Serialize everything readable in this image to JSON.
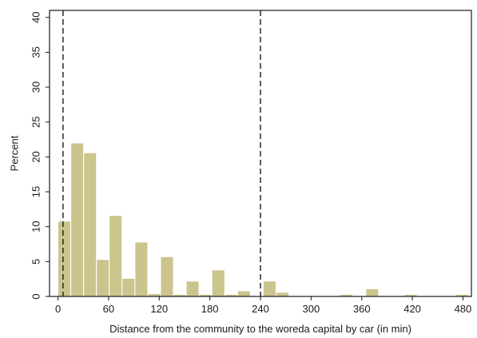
{
  "chart_data": {
    "type": "bar",
    "title": "",
    "xlabel": "Distance from the community to the woreda capital by car (in min)",
    "ylabel": "Percent",
    "xlim": [
      -10,
      490
    ],
    "ylim": [
      0,
      41
    ],
    "x_ticks": [
      0,
      60,
      120,
      180,
      240,
      300,
      360,
      420,
      480
    ],
    "x_tick_labels": [
      "0",
      "60",
      "120",
      "180",
      "240",
      "300",
      "360",
      "420",
      "480"
    ],
    "y_ticks": [
      0,
      5,
      10,
      15,
      20,
      25,
      30,
      35,
      40
    ],
    "y_tick_labels": [
      "0",
      "5",
      "10",
      "15",
      "20",
      "25",
      "30",
      "35",
      "40"
    ],
    "bin_width": 15.2,
    "bins": [
      {
        "x0": 0,
        "value": 10.8
      },
      {
        "x0": 15.2,
        "value": 22.0
      },
      {
        "x0": 30.4,
        "value": 20.6
      },
      {
        "x0": 45.6,
        "value": 5.3
      },
      {
        "x0": 60.8,
        "value": 11.6
      },
      {
        "x0": 76.0,
        "value": 2.6
      },
      {
        "x0": 91.2,
        "value": 7.8
      },
      {
        "x0": 106.4,
        "value": 0.4
      },
      {
        "x0": 121.6,
        "value": 5.7
      },
      {
        "x0": 136.8,
        "value": 0.3
      },
      {
        "x0": 152.0,
        "value": 2.2
      },
      {
        "x0": 167.2,
        "value": 0.3
      },
      {
        "x0": 182.4,
        "value": 3.8
      },
      {
        "x0": 197.6,
        "value": 0.3
      },
      {
        "x0": 212.8,
        "value": 0.8
      },
      {
        "x0": 243.2,
        "value": 2.2
      },
      {
        "x0": 258.4,
        "value": 0.6
      },
      {
        "x0": 334.4,
        "value": 0.3
      },
      {
        "x0": 364.8,
        "value": 1.1
      },
      {
        "x0": 410.4,
        "value": 0.3
      },
      {
        "x0": 471.2,
        "value": 0.3
      }
    ],
    "reference_lines_x": [
      6,
      240
    ],
    "bar_color": "#ccc48d",
    "bar_edge_color": "#ffffff",
    "ref_line_color": "#1a1a1a",
    "grid": false,
    "legend": "none"
  }
}
